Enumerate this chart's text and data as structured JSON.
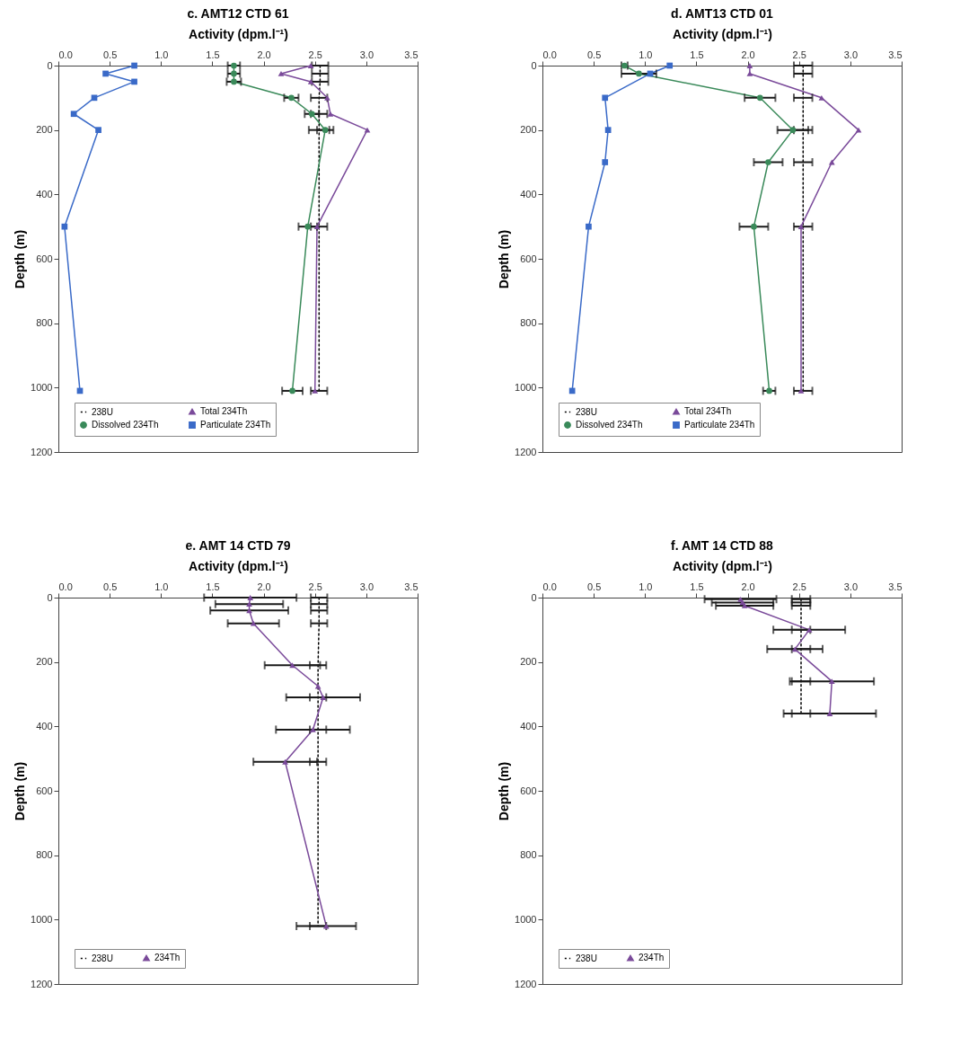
{
  "chart_data": [
    {
      "type": "line",
      "title": "c. AMT12 CTD 61",
      "xlabel": "Activity (dpm.l⁻¹)",
      "ylabel": "Depth (m)",
      "xlim": [
        0,
        3.5
      ],
      "xticks": [
        {
          "value": 0,
          "label": "0.0"
        },
        0.5,
        {
          "value": 1,
          "label": "1.0"
        },
        1.5,
        {
          "value": 2,
          "label": "2.0"
        },
        2.5,
        {
          "value": 3,
          "label": "3.0"
        },
        3.5
      ],
      "ylim": [
        1200,
        0
      ],
      "yticks": [
        0,
        200,
        400,
        600,
        800,
        1000,
        1200
      ],
      "legend": "bottom",
      "series": [
        {
          "name": "238U",
          "color": "#000000",
          "marker": "none",
          "line_style": "dotted",
          "x": [
            2.55,
            2.55,
            2.55,
            2.54,
            2.54,
            2.54,
            2.54,
            2.54
          ],
          "values": [
            0,
            25,
            50,
            100,
            150,
            200,
            500,
            1010
          ],
          "xerrors": [
            0.08,
            0.08,
            0.08,
            0.08,
            0.08,
            0.1,
            0.08,
            0.08
          ]
        },
        {
          "name": "Dissolved 234Th",
          "color": "#3a8a5a",
          "marker": "circle",
          "line_style": "solid",
          "x": [
            1.71,
            1.71,
            1.71,
            2.27,
            2.47,
            2.6,
            2.43,
            2.28
          ],
          "values": [
            0,
            25,
            50,
            100,
            150,
            200,
            500,
            1010
          ],
          "xerrors": [
            0.06,
            0.06,
            0.07,
            0.07,
            0.07,
            0.08,
            0.09,
            0.1
          ]
        },
        {
          "name": "Total 234Th",
          "color": "#7a4a9a",
          "marker": "triangle",
          "line_style": "solid",
          "x": [
            2.46,
            2.17,
            2.46,
            2.62,
            2.65,
            3.01,
            2.52,
            2.5
          ],
          "values": [
            0,
            25,
            50,
            100,
            150,
            200,
            500,
            1010
          ]
        },
        {
          "name": "Particulate 234Th",
          "color": "#3a6ac8",
          "marker": "square",
          "line_style": "solid",
          "x": [
            0.74,
            0.46,
            0.74,
            0.35,
            0.15,
            0.39,
            0.06,
            0.21
          ],
          "values": [
            0,
            25,
            50,
            100,
            150,
            200,
            500,
            1010
          ]
        }
      ]
    },
    {
      "type": "line",
      "title": "d. AMT13 CTD 01",
      "xlabel": "Activity (dpm.l⁻¹)",
      "ylabel": "Depth (m)",
      "xlim": [
        0,
        3.5
      ],
      "xticks": [
        {
          "value": 0,
          "label": "0.0"
        },
        0.5,
        {
          "value": 1,
          "label": "1.0"
        },
        1.5,
        {
          "value": 2,
          "label": "2.0"
        },
        2.5,
        {
          "value": 3,
          "label": "3.0"
        },
        3.5
      ],
      "ylim": [
        1200,
        0
      ],
      "yticks": [
        0,
        200,
        400,
        600,
        800,
        1000,
        1200
      ],
      "legend": "bottom",
      "series": [
        {
          "name": "238U",
          "color": "#000000",
          "marker": "none",
          "line_style": "dotted",
          "x": [
            2.54,
            2.54,
            2.54,
            2.54,
            2.54,
            2.54,
            2.54
          ],
          "values": [
            0,
            25,
            100,
            200,
            300,
            500,
            1010
          ],
          "xerrors": [
            0.09,
            0.09,
            0.09,
            0.09,
            0.09,
            0.09,
            0.09
          ]
        },
        {
          "name": "Dissolved 234Th",
          "color": "#3a8a5a",
          "marker": "circle",
          "line_style": "solid",
          "x": [
            0.8,
            0.94,
            2.12,
            2.44,
            2.2,
            2.06,
            2.21
          ],
          "values": [
            0,
            25,
            100,
            200,
            300,
            500,
            1010
          ],
          "xerrors": [
            0.03,
            0.17,
            0.15,
            0.15,
            0.14,
            0.14,
            0.06
          ]
        },
        {
          "name": "Total 234Th",
          "color": "#7a4a9a",
          "marker": "triangle",
          "line_style": "solid",
          "x": [
            2.02,
            2.02,
            2.72,
            3.08,
            2.82,
            2.52,
            2.52
          ],
          "values": [
            0,
            25,
            100,
            200,
            300,
            500,
            1010
          ]
        },
        {
          "name": "Particulate 234Th",
          "color": "#3a6ac8",
          "marker": "square",
          "line_style": "solid",
          "x": [
            1.24,
            1.05,
            0.61,
            0.64,
            0.61,
            0.45,
            0.29
          ],
          "values": [
            0,
            25,
            100,
            200,
            300,
            500,
            1010
          ]
        }
      ]
    },
    {
      "type": "line",
      "title": "e. AMT 14 CTD 79",
      "xlabel": "Activity (dpm.l⁻¹)",
      "ylabel": "Depth (m)",
      "xlim": [
        0,
        3.5
      ],
      "xticks": [
        {
          "value": 0,
          "label": "0.0"
        },
        0.5,
        {
          "value": 1,
          "label": "1.0"
        },
        1.5,
        {
          "value": 2,
          "label": "2.0"
        },
        2.5,
        {
          "value": 3,
          "label": "3.0"
        },
        3.5
      ],
      "ylim": [
        1200,
        0
      ],
      "yticks": [
        0,
        200,
        400,
        600,
        800,
        1000,
        1200
      ],
      "legend": "bottom",
      "series": [
        {
          "name": "238U",
          "color": "#000000",
          "marker": "none",
          "line_style": "dotted",
          "x": [
            2.54,
            2.54,
            2.54,
            2.54,
            2.53,
            2.53,
            2.53,
            2.53,
            2.53
          ],
          "values": [
            0,
            20,
            40,
            80,
            210,
            310,
            410,
            510,
            1020
          ],
          "xerrors": [
            0.08,
            0.08,
            0.08,
            0.08,
            0.08,
            0.08,
            0.08,
            0.08,
            0.08
          ]
        },
        {
          "name": "234Th",
          "color": "#7a4a9a",
          "marker": "triangle",
          "line_style": "solid",
          "x": [
            1.87,
            1.86,
            1.86,
            1.9,
            2.28,
            2.53,
            2.58,
            2.48,
            2.21,
            2.61
          ],
          "values": [
            0,
            20,
            40,
            80,
            210,
            275,
            310,
            410,
            510,
            1020
          ],
          "xerrors": [
            0.45,
            0.33,
            0.38,
            0.25,
            0.27,
            null,
            0.36,
            0.36,
            0.31,
            0.29
          ]
        }
      ]
    },
    {
      "type": "line",
      "title": "f. AMT 14 CTD 88",
      "xlabel": "Activity (dpm.l⁻¹)",
      "ylabel": "Depth (m)",
      "xlim": [
        0,
        3.5
      ],
      "xticks": [
        {
          "value": 0,
          "label": "0.0"
        },
        0.5,
        {
          "value": 1,
          "label": "1.0"
        },
        1.5,
        {
          "value": 2,
          "label": "2.0"
        },
        2.5,
        {
          "value": 3,
          "label": "3.0"
        },
        3.5
      ],
      "ylim": [
        1200,
        0
      ],
      "yticks": [
        0,
        200,
        400,
        600,
        800,
        1000,
        1200
      ],
      "legend": "bottom",
      "series": [
        {
          "name": "238U",
          "color": "#000000",
          "marker": "none",
          "line_style": "dotted",
          "x": [
            2.52,
            2.52,
            2.52,
            2.52,
            2.52,
            2.52,
            2.52
          ],
          "values": [
            5,
            15,
            25,
            100,
            160,
            260,
            360
          ],
          "xerrors": [
            0.09,
            0.09,
            0.09,
            0.09,
            0.09,
            0.09,
            0.09
          ]
        },
        {
          "name": "234Th",
          "color": "#7a4a9a",
          "marker": "triangle",
          "line_style": "solid",
          "x": [
            1.93,
            1.95,
            1.97,
            2.6,
            2.46,
            2.82,
            2.8
          ],
          "values": [
            5,
            15,
            25,
            100,
            160,
            260,
            360
          ],
          "xerrors": [
            0.35,
            0.3,
            0.28,
            0.35,
            0.27,
            0.41,
            0.45
          ]
        }
      ]
    }
  ]
}
